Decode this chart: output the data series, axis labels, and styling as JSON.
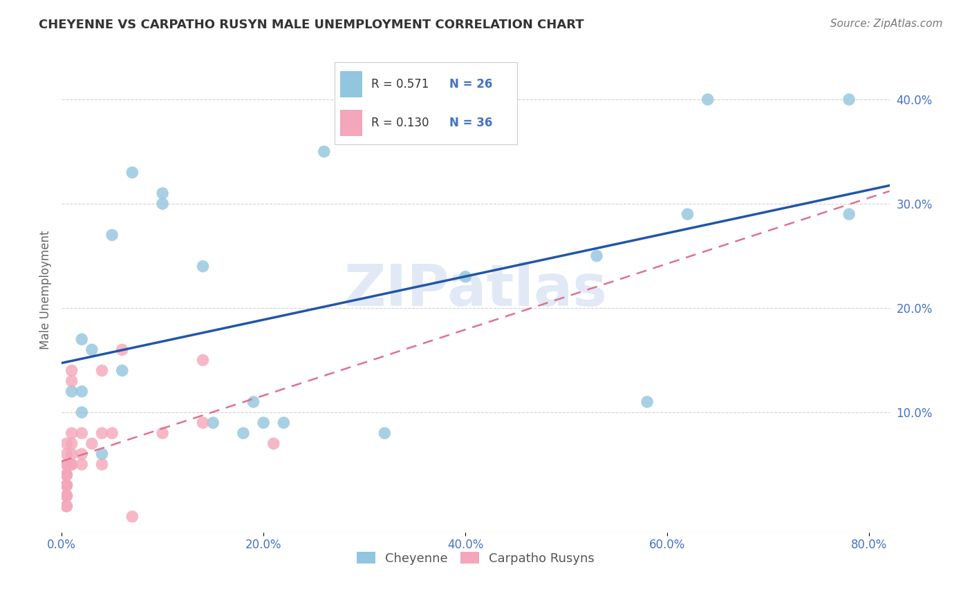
{
  "title": "CHEYENNE VS CARPATHO RUSYN MALE UNEMPLOYMENT CORRELATION CHART",
  "source": "Source: ZipAtlas.com",
  "ylabel": "Male Unemployment",
  "right_yticks": [
    0.1,
    0.2,
    0.3,
    0.4
  ],
  "right_yticklabels": [
    "10.0%",
    "20.0%",
    "30.0%",
    "40.0%"
  ],
  "xlim": [
    0.0,
    0.82
  ],
  "ylim": [
    -0.015,
    0.45
  ],
  "legend_blue_r": "R = 0.571",
  "legend_blue_n": "N = 26",
  "legend_pink_r": "R = 0.130",
  "legend_pink_n": "N = 36",
  "legend_label_blue": "Cheyenne",
  "legend_label_pink": "Carpatho Rusyns",
  "blue_color": "#92C5DE",
  "pink_color": "#F4A6BA",
  "blue_line_color": "#2255AA",
  "pink_line_color": "#E07090",
  "watermark": "ZIPatlas",
  "blue_x": [
    0.02,
    0.07,
    0.1,
    0.1,
    0.05,
    0.06,
    0.03,
    0.01,
    0.02,
    0.02,
    0.15,
    0.2,
    0.14,
    0.4,
    0.19,
    0.62,
    0.64,
    0.58,
    0.78,
    0.78,
    0.32,
    0.22,
    0.18,
    0.26,
    0.53,
    0.04
  ],
  "blue_y": [
    0.17,
    0.33,
    0.3,
    0.31,
    0.27,
    0.14,
    0.16,
    0.12,
    0.1,
    0.12,
    0.09,
    0.09,
    0.24,
    0.23,
    0.11,
    0.29,
    0.4,
    0.11,
    0.4,
    0.29,
    0.08,
    0.09,
    0.08,
    0.35,
    0.25,
    0.06
  ],
  "pink_x": [
    0.005,
    0.005,
    0.005,
    0.005,
    0.005,
    0.005,
    0.005,
    0.005,
    0.005,
    0.005,
    0.005,
    0.005,
    0.005,
    0.005,
    0.005,
    0.01,
    0.01,
    0.01,
    0.01,
    0.01,
    0.01,
    0.01,
    0.02,
    0.02,
    0.02,
    0.03,
    0.04,
    0.04,
    0.04,
    0.05,
    0.07,
    0.14,
    0.14,
    0.21,
    0.06,
    0.1
  ],
  "pink_y": [
    0.01,
    0.01,
    0.02,
    0.02,
    0.02,
    0.03,
    0.03,
    0.03,
    0.04,
    0.04,
    0.04,
    0.05,
    0.05,
    0.06,
    0.07,
    0.05,
    0.05,
    0.06,
    0.07,
    0.08,
    0.13,
    0.14,
    0.05,
    0.06,
    0.08,
    0.07,
    0.05,
    0.08,
    0.14,
    0.08,
    0.0,
    0.09,
    0.15,
    0.07,
    0.16,
    0.08
  ],
  "background_color": "#FFFFFF",
  "grid_color": "#CCCCCC",
  "xtick_positions": [
    0.0,
    0.2,
    0.4,
    0.6,
    0.8
  ]
}
